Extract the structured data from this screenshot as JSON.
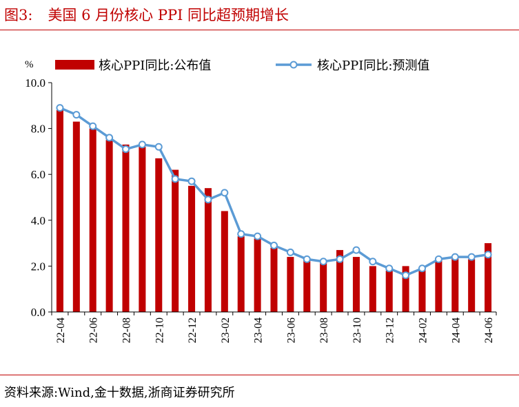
{
  "figure": {
    "number": "图3:",
    "title": "美国 6 月份核心 PPI 同比超预期增长",
    "source": "资料来源:Wind,金十数据,浙商证券研究所"
  },
  "colors": {
    "bar": "#c00000",
    "line": "#5b9bd5",
    "marker_fill": "#ffffff",
    "rule": "#c00000"
  },
  "chart_data": {
    "type": "bar",
    "ylabel": "%",
    "ylim": [
      0,
      10
    ],
    "yticks": [
      "0.0",
      "2.0",
      "4.0",
      "6.0",
      "8.0",
      "10.0"
    ],
    "yticks_values": [
      0,
      2,
      4,
      6,
      8,
      10
    ],
    "legend_placement": "top",
    "categories": [
      "22-04",
      "22-05",
      "22-06",
      "22-07",
      "22-08",
      "22-09",
      "22-10",
      "22-11",
      "22-12",
      "23-01",
      "23-02",
      "23-03",
      "23-04",
      "23-05",
      "23-06",
      "23-07",
      "23-08",
      "23-09",
      "23-10",
      "23-11",
      "23-12",
      "24-01",
      "24-02",
      "24-03",
      "24-04",
      "24-05",
      "24-06"
    ],
    "xtick_labels": [
      "22-04",
      "22-06",
      "22-08",
      "22-10",
      "22-12",
      "23-02",
      "23-04",
      "23-06",
      "23-08",
      "23-10",
      "23-12",
      "24-02",
      "24-04",
      "24-06"
    ],
    "series": [
      {
        "name": "核心PPI同比:公布值",
        "kind": "bar",
        "values": [
          8.8,
          8.3,
          8.0,
          7.5,
          7.3,
          7.2,
          6.7,
          6.2,
          5.5,
          5.4,
          4.4,
          3.3,
          3.2,
          2.8,
          2.4,
          2.3,
          2.2,
          2.7,
          2.4,
          2.0,
          1.8,
          2.0,
          1.9,
          2.3,
          2.4,
          2.3,
          3.0
        ]
      },
      {
        "name": "核心PPI同比:预测值",
        "kind": "line",
        "values": [
          8.9,
          8.6,
          8.1,
          7.6,
          7.1,
          7.3,
          7.2,
          5.8,
          5.7,
          4.9,
          5.2,
          3.4,
          3.3,
          2.9,
          2.6,
          2.3,
          2.2,
          2.3,
          2.7,
          2.2,
          1.9,
          1.6,
          1.9,
          2.3,
          2.4,
          2.4,
          2.5
        ]
      }
    ]
  }
}
